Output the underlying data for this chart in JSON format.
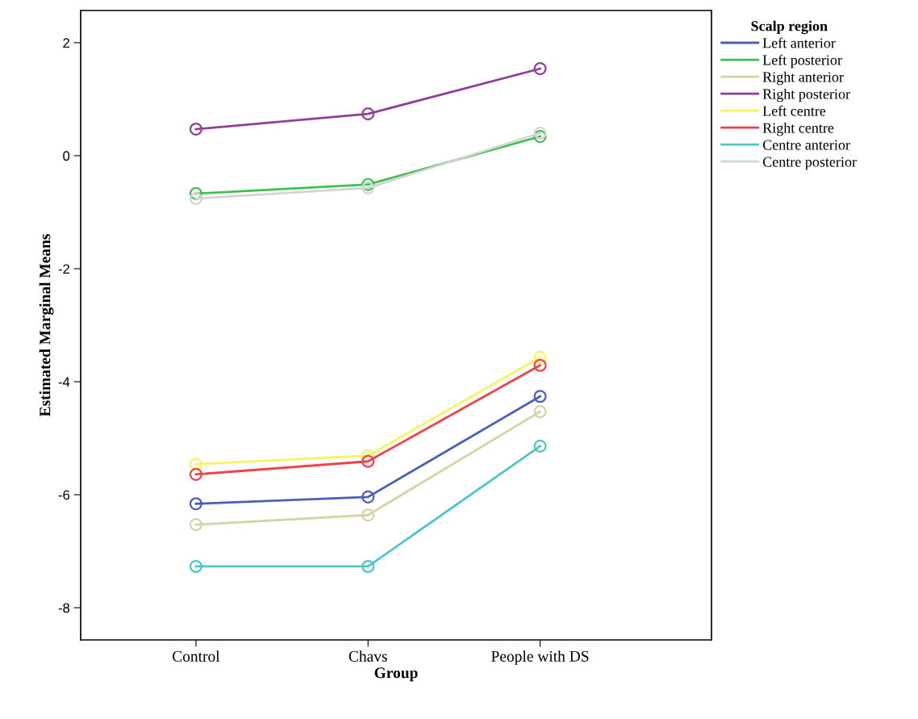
{
  "chart_data": {
    "type": "line",
    "xlabel": "Group",
    "ylabel": "Estimated Marginal Means",
    "legend_title": "Scalp region",
    "categories": [
      "Control",
      "Chavs",
      "People with DS"
    ],
    "series": [
      {
        "name": "Left anterior",
        "color": "#4a5fb5",
        "values": [
          -6.16,
          -6.04,
          -4.26
        ]
      },
      {
        "name": "Left posterior",
        "color": "#3fc14f",
        "values": [
          -0.67,
          -0.51,
          0.34
        ]
      },
      {
        "name": "Right anterior",
        "color": "#d6d2a2",
        "values": [
          -6.53,
          -6.36,
          -4.53
        ]
      },
      {
        "name": "Right posterior",
        "color": "#8e3f97",
        "values": [
          0.47,
          0.74,
          1.54
        ]
      },
      {
        "name": "Left centre",
        "color": "#f7f266",
        "values": [
          -5.46,
          -5.31,
          -3.57
        ]
      },
      {
        "name": "Right centre",
        "color": "#f0424b",
        "values": [
          -5.64,
          -5.41,
          -3.71
        ]
      },
      {
        "name": "Centre anterior",
        "color": "#4cc6c8",
        "values": [
          -7.27,
          -7.27,
          -5.14
        ]
      },
      {
        "name": "Centre posterior",
        "color": "#d4d4d4",
        "values": [
          -0.76,
          -0.57,
          0.4
        ]
      }
    ],
    "ylim": [
      -8.57,
      2.57
    ],
    "yticks": [
      -8,
      -6,
      -4,
      -2,
      0,
      2
    ],
    "grid": false,
    "legend": "top right",
    "marker": "circle",
    "line_style": "solid"
  }
}
